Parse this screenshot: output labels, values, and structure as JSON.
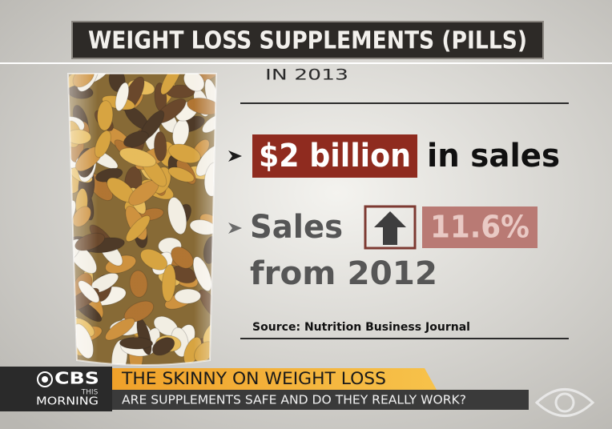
{
  "header": {
    "title": "WEIGHT LOSS SUPPLEMENTS (PILLS)",
    "subtitle": "IN 2013"
  },
  "facts": [
    {
      "highlight": "$2 billion",
      "text": "in sales"
    },
    {
      "text": "Sales",
      "highlight": "11.6%",
      "text_after": "from 2012"
    }
  ],
  "source": "Source: Nutrition Business Journal",
  "lower_third": {
    "logo": "CBS",
    "logo_line2": "THIS",
    "logo_line3": "MORNING",
    "headline": "THE SKINNY ON WEIGHT LOSS",
    "subhead": "ARE SUPPLEMENTS SAFE AND DO THEY REALLY WORK?"
  }
}
